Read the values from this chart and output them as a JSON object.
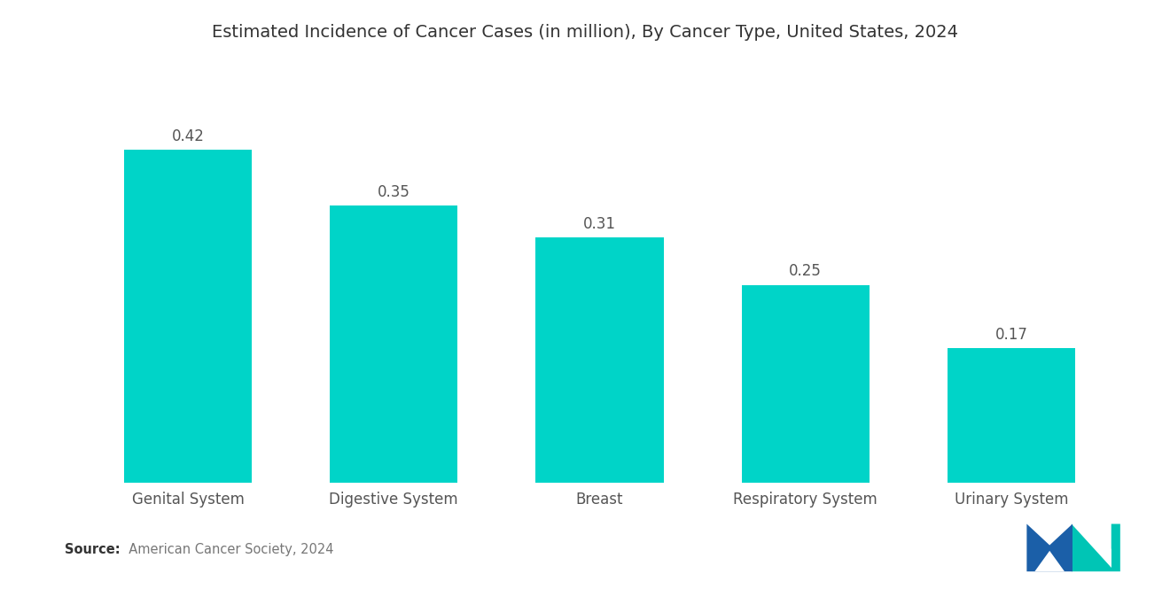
{
  "title": "Estimated Incidence of Cancer Cases (in million), By Cancer Type, United States, 2024",
  "categories": [
    "Genital System",
    "Digestive System",
    "Breast",
    "Respiratory System",
    "Urinary System"
  ],
  "values": [
    0.42,
    0.35,
    0.31,
    0.25,
    0.17
  ],
  "bar_color": "#00D4C8",
  "background_color": "#ffffff",
  "title_fontsize": 14,
  "label_fontsize": 12,
  "value_fontsize": 12,
  "ylim": [
    0,
    0.52
  ],
  "source_bold": "Source:",
  "source_rest": "  American Cancer Society, 2024",
  "logo_blue": "#1B5FA8",
  "logo_teal": "#00C5B5"
}
